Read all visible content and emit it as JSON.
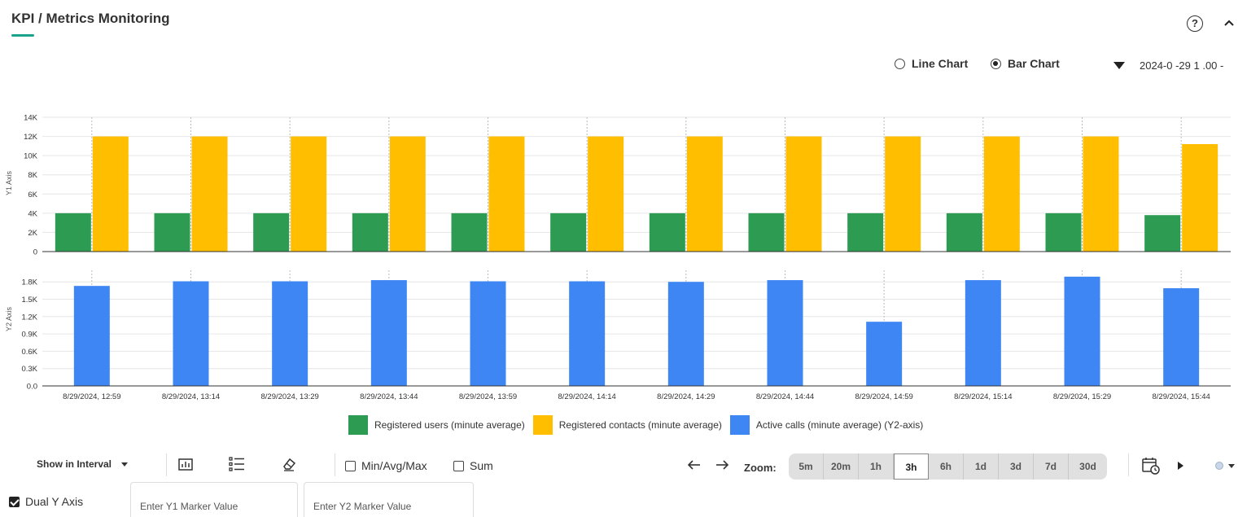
{
  "header": {
    "title": "KPI / Metrics Monitoring"
  },
  "chart_type": {
    "options": [
      "Line Chart",
      "Bar Chart"
    ],
    "selected": "Bar Chart"
  },
  "date_range": {
    "value": "2024-0  -29 1 .00 -"
  },
  "colors": {
    "green": "#2e9b52",
    "yellow": "#ffbf00",
    "blue": "#3f86f5",
    "accent": "#1aa38a"
  },
  "chart_data": {
    "type": "bar",
    "categories": [
      "8/29/2024, 12:59",
      "8/29/2024, 13:14",
      "8/29/2024, 13:29",
      "8/29/2024, 13:44",
      "8/29/2024, 13:59",
      "8/29/2024, 14:14",
      "8/29/2024, 14:29",
      "8/29/2024, 14:44",
      "8/29/2024, 14:59",
      "8/29/2024, 15:14",
      "8/29/2024, 15:29",
      "8/29/2024, 15:44"
    ],
    "y1": {
      "label": "Y1 Axis",
      "ticks": [
        "0",
        "2K",
        "4K",
        "6K",
        "8K",
        "10K",
        "12K",
        "14K"
      ],
      "range": [
        0,
        14000
      ],
      "series": [
        {
          "name": "Registered users (minute average)",
          "color": "#2e9b52",
          "values": [
            4000,
            4000,
            4000,
            4000,
            4000,
            4000,
            4000,
            4000,
            4000,
            4000,
            4000,
            3800
          ]
        },
        {
          "name": "Registered contacts (minute average)",
          "color": "#ffbf00",
          "values": [
            12000,
            12000,
            12000,
            12000,
            12000,
            12000,
            12000,
            12000,
            12000,
            12000,
            12000,
            11200
          ]
        }
      ]
    },
    "y2": {
      "label": "Y2 Axis",
      "ticks": [
        "0.0",
        "0.3K",
        "0.6K",
        "0.9K",
        "1.2K",
        "1.5K",
        "1.8K"
      ],
      "range": [
        0,
        2000
      ],
      "series": [
        {
          "name": "Active calls (minute average) (Y2-axis)",
          "color": "#3f86f5",
          "values": [
            1730,
            1810,
            1810,
            1830,
            1810,
            1810,
            1800,
            1830,
            1110,
            1830,
            1890,
            1690
          ]
        }
      ]
    },
    "grid": true,
    "legend": "bottom-center"
  },
  "toolbar": {
    "interval_label": "Show in Interval",
    "minmax_label": "Min/Avg/Max",
    "sum_label": "Sum",
    "zoom_label": "Zoom:",
    "zoom_options": [
      "5m",
      "20m",
      "1h",
      "3h",
      "6h",
      "1d",
      "3d",
      "7d",
      "30d"
    ],
    "zoom_selected": "3h"
  },
  "options": {
    "dual_y_label": "Dual Y Axis",
    "dual_y_checked": true,
    "y1_marker_placeholder": "Enter Y1 Marker Value",
    "y2_marker_placeholder": "Enter Y2 Marker Value"
  }
}
